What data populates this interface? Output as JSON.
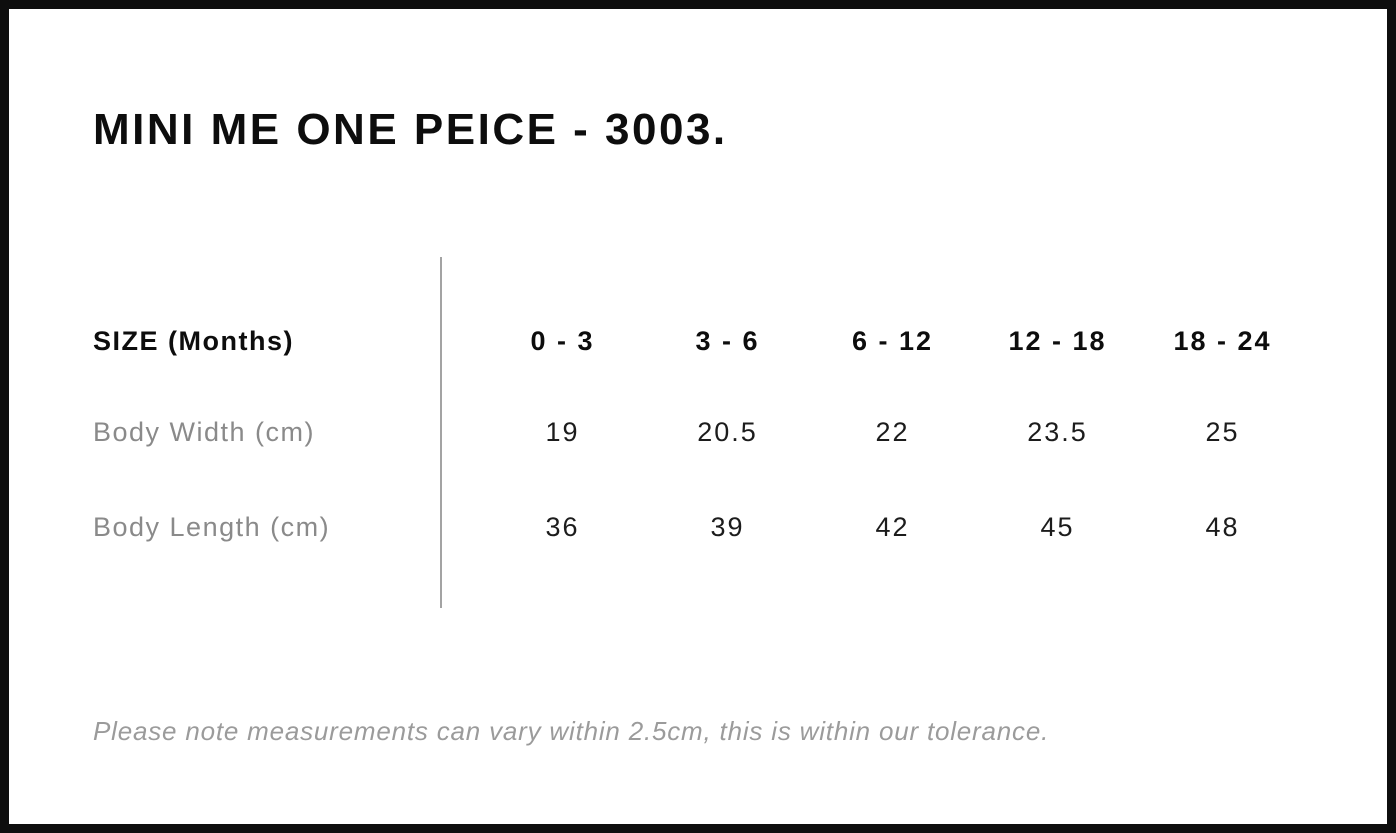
{
  "page": {
    "title": "MINI ME ONE PEICE - 3003.",
    "footnote": "Please note measurements can vary within 2.5cm, this is within our tolerance."
  },
  "size_table": {
    "header_label": "SIZE (Months)",
    "size_headers": [
      "0 - 3",
      "3 - 6",
      "6 - 12",
      "12 - 18",
      "18 - 24"
    ],
    "rows": [
      {
        "label": "Body Width (cm)",
        "values": [
          "19",
          "20.5",
          "22",
          "23.5",
          "25"
        ]
      },
      {
        "label": "Body Length (cm)",
        "values": [
          "36",
          "39",
          "42",
          "45",
          "48"
        ]
      }
    ]
  },
  "colors": {
    "frame_border": "#0e0e0e",
    "background": "#ffffff",
    "heading_text": "#0d0d0d",
    "value_text": "#1c1c1c",
    "muted_label_text": "#8a8a8a",
    "footnote_text": "#9b9b9b",
    "divider": "#a3a3a3"
  }
}
